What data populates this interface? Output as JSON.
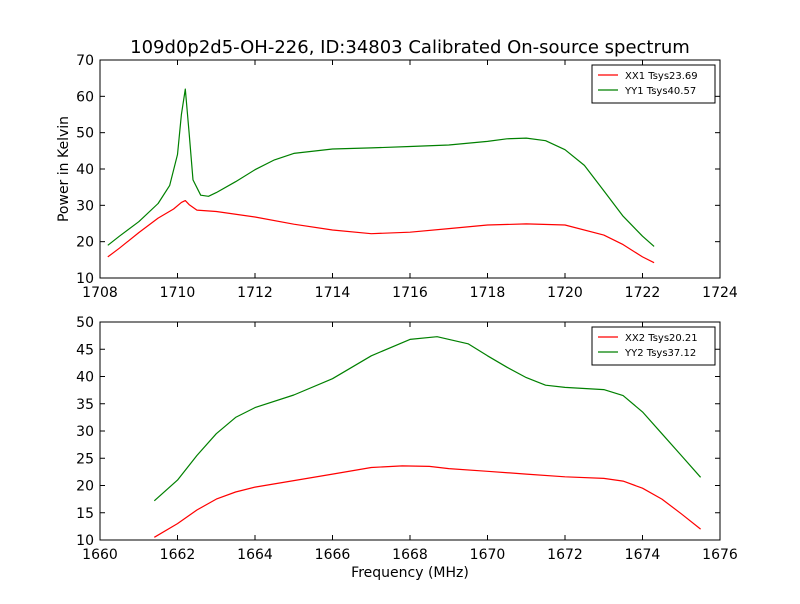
{
  "chart_data": [
    {
      "type": "line",
      "title": "109d0p2d5-OH-226, ID:34803 Calibrated On-source spectrum",
      "xlabel": "",
      "ylabel": "Power in Kelvin",
      "xlim": [
        1708,
        1724
      ],
      "ylim": [
        10,
        70
      ],
      "xticks": [
        "1708",
        "1710",
        "1712",
        "1714",
        "1716",
        "1718",
        "1720",
        "1722",
        "1724"
      ],
      "yticks": [
        "10",
        "20",
        "30",
        "40",
        "50",
        "60",
        "70"
      ],
      "legend_position": "top-right",
      "series": [
        {
          "name": "XX1 Tsys23.69",
          "color": "#ff0000",
          "x": [
            1708.2,
            1708.5,
            1709.0,
            1709.5,
            1709.9,
            1710.1,
            1710.2,
            1710.3,
            1710.5,
            1711.0,
            1712.0,
            1713.0,
            1714.0,
            1715.0,
            1716.0,
            1717.0,
            1718.0,
            1719.0,
            1720.0,
            1721.0,
            1721.5,
            1722.0,
            1722.3
          ],
          "y": [
            15.8,
            18.2,
            22.5,
            26.5,
            29.0,
            30.8,
            31.3,
            30.2,
            28.7,
            28.3,
            26.8,
            24.8,
            23.2,
            22.2,
            22.6,
            23.6,
            24.6,
            24.9,
            24.6,
            21.8,
            19.2,
            15.8,
            14.2
          ]
        },
        {
          "name": "YY1 Tsys40.57",
          "color": "#008000",
          "x": [
            1708.2,
            1708.5,
            1709.0,
            1709.5,
            1709.8,
            1710.0,
            1710.1,
            1710.2,
            1710.3,
            1710.4,
            1710.6,
            1710.8,
            1711.0,
            1711.5,
            1712.0,
            1712.5,
            1713.0,
            1714.0,
            1715.0,
            1716.0,
            1717.0,
            1718.0,
            1718.5,
            1719.0,
            1719.5,
            1720.0,
            1720.5,
            1721.0,
            1721.5,
            1722.0,
            1722.3
          ],
          "y": [
            19.0,
            21.5,
            25.5,
            30.5,
            35.5,
            44.0,
            55.0,
            62.0,
            50.0,
            37.0,
            32.8,
            32.5,
            33.5,
            36.5,
            39.8,
            42.5,
            44.3,
            45.5,
            45.8,
            46.2,
            46.6,
            47.6,
            48.3,
            48.5,
            47.8,
            45.3,
            41.0,
            34.0,
            27.0,
            21.5,
            18.7
          ]
        }
      ]
    },
    {
      "type": "line",
      "title": "",
      "xlabel": "Frequency (MHz)",
      "ylabel": "",
      "xlim": [
        1660,
        1676
      ],
      "ylim": [
        10,
        50
      ],
      "xticks": [
        "1660",
        "1662",
        "1664",
        "1666",
        "1668",
        "1670",
        "1672",
        "1674",
        "1676"
      ],
      "yticks": [
        "10",
        "15",
        "20",
        "25",
        "30",
        "35",
        "40",
        "45",
        "50"
      ],
      "legend_position": "top-right",
      "series": [
        {
          "name": "XX2 Tsys20.21",
          "color": "#ff0000",
          "x": [
            1661.4,
            1662.0,
            1662.5,
            1663.0,
            1663.5,
            1664.0,
            1665.0,
            1666.0,
            1667.0,
            1667.8,
            1668.5,
            1669.0,
            1670.0,
            1671.0,
            1672.0,
            1673.0,
            1673.5,
            1674.0,
            1674.5,
            1675.0,
            1675.5
          ],
          "y": [
            10.5,
            13.0,
            15.5,
            17.5,
            18.8,
            19.7,
            20.9,
            22.1,
            23.3,
            23.6,
            23.5,
            23.1,
            22.6,
            22.1,
            21.6,
            21.3,
            20.8,
            19.5,
            17.5,
            14.8,
            12.0
          ]
        },
        {
          "name": "YY2 Tsys37.12",
          "color": "#008000",
          "x": [
            1661.4,
            1662.0,
            1662.5,
            1663.0,
            1663.5,
            1664.0,
            1665.0,
            1666.0,
            1667.0,
            1668.0,
            1668.7,
            1669.5,
            1670.0,
            1670.5,
            1671.0,
            1671.5,
            1672.0,
            1673.0,
            1673.5,
            1674.0,
            1674.5,
            1675.0,
            1675.5
          ],
          "y": [
            17.2,
            21.0,
            25.5,
            29.5,
            32.5,
            34.3,
            36.6,
            39.6,
            43.8,
            46.8,
            47.3,
            46.0,
            43.8,
            41.7,
            39.8,
            38.4,
            38.0,
            37.6,
            36.5,
            33.5,
            29.5,
            25.5,
            21.5
          ]
        }
      ]
    }
  ]
}
